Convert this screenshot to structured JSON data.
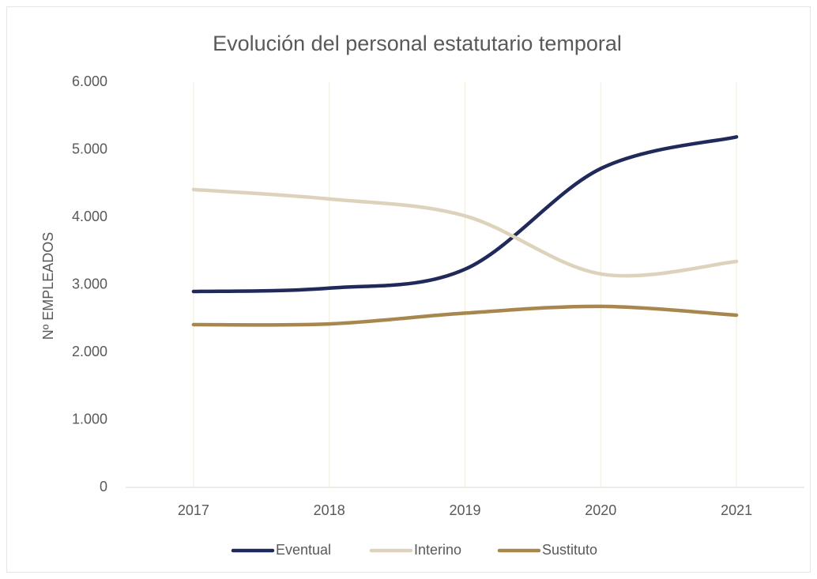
{
  "chart_data": {
    "type": "line",
    "title": "Evolución del personal estatutario temporal",
    "y_label": "Nº EMPLEADOS",
    "categories": [
      "2017",
      "2018",
      "2019",
      "2020",
      "2021"
    ],
    "series": [
      {
        "name": "Eventual",
        "color": "#1f2a5a",
        "values": [
          2900,
          2950,
          3230,
          4720,
          5190
        ]
      },
      {
        "name": "Interino",
        "color": "#ddd3bc",
        "values": [
          4410,
          4270,
          4020,
          3160,
          3345
        ]
      },
      {
        "name": "Sustituto",
        "color": "#a8874e",
        "values": [
          2410,
          2420,
          2580,
          2680,
          2550
        ]
      }
    ],
    "ylim": [
      0,
      6000
    ],
    "yticks": [
      {
        "value": 0,
        "label": "0"
      },
      {
        "value": 1000,
        "label": "1.000"
      },
      {
        "value": 2000,
        "label": "2.000"
      },
      {
        "value": 3000,
        "label": "3.000"
      },
      {
        "value": 4000,
        "label": "4.000"
      },
      {
        "value": 5000,
        "label": "5.000"
      },
      {
        "value": 6000,
        "label": "6.000"
      }
    ],
    "smooth": true,
    "legend": "bottom"
  }
}
